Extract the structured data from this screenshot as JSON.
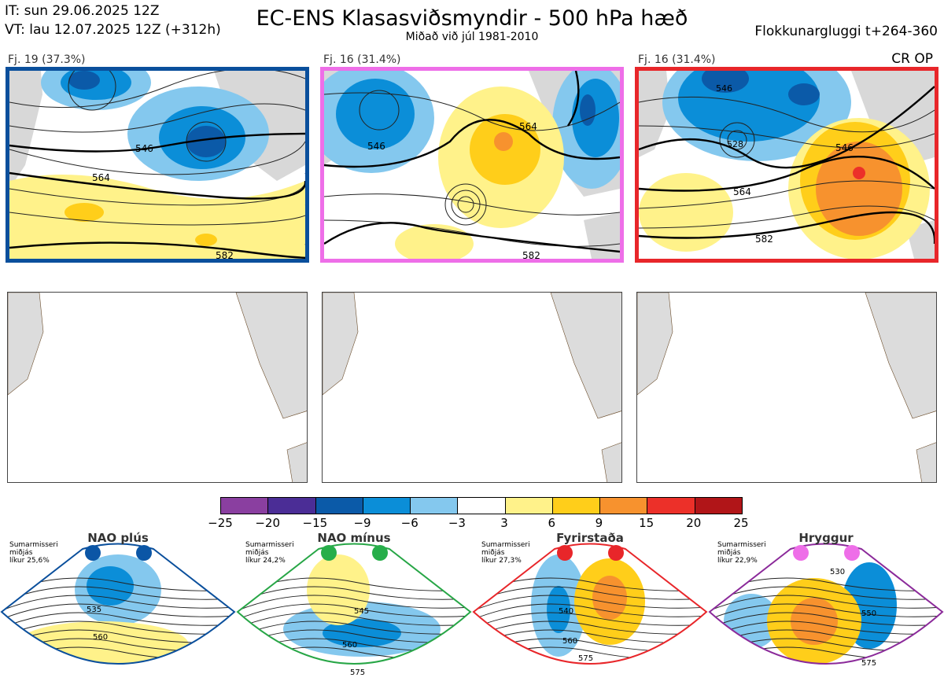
{
  "header": {
    "initial_time": "IT: sun 29.06.2025 12Z",
    "valid_time": "VT: lau 12.07.2025 12Z  (+312h)",
    "title": "EC-ENS Klasasviðsmyndir - 500 hPa hæð",
    "subtitle": "Miðað við júl 1981-2010",
    "window": "Flokkunargluggi t+264-360"
  },
  "clusters": [
    {
      "label": "Fj. 19 (37.3%)",
      "border_color": "#0a4f9c",
      "contours": [
        "546",
        "564",
        "582"
      ]
    },
    {
      "label": "Fj. 16 (31.4%)",
      "border_color": "#ee6ee8",
      "contours": [
        "546",
        "564",
        "582"
      ]
    },
    {
      "label": "Fj. 16 (31.4%)",
      "border_color": "#e8262a",
      "contours": [
        "546",
        "564",
        "582",
        "528",
        "546"
      ],
      "tag": "CR OP"
    }
  ],
  "colorbar": {
    "colors": [
      "#8a3fa0",
      "#4b2d96",
      "#0b5aa8",
      "#0b8ed8",
      "#84c8ee",
      "#ffffff",
      "#fff28a",
      "#ffce1a",
      "#f7922e",
      "#ec3029",
      "#b11518"
    ],
    "labels": [
      "−25",
      "−20",
      "−15",
      "−9",
      "−6",
      "−3",
      "3",
      "6",
      "9",
      "15",
      "20",
      "25"
    ]
  },
  "regimes": [
    {
      "name": "NAO plús",
      "note": [
        "Sumarmisseri",
        "miðjás",
        "líkur 25,6%"
      ],
      "border_color": "#0a4f9c",
      "dot_color": "#0b56a6",
      "contours": [
        "535",
        "560"
      ]
    },
    {
      "name": "NAO mínus",
      "note": [
        "Sumarmisseri",
        "miðjás",
        "líkur 24,2%"
      ],
      "border_color": "#27a646",
      "dot_color": "#27ae4a",
      "contours": [
        "545",
        "560",
        "575"
      ]
    },
    {
      "name": "Fyrirstaða",
      "note": [
        "Sumarmisseri",
        "miðjás",
        "líkur 27,3%"
      ],
      "border_color": "#e8262a",
      "dot_color": "#e8262a",
      "contours": [
        "540",
        "560",
        "575"
      ]
    },
    {
      "name": "Hryggur",
      "note": [
        "Sumarmisseri",
        "miðjás",
        "líkur 22,9%"
      ],
      "border_color": "#8b2a9a",
      "dot_color": "#ee6ee8",
      "contours": [
        "530",
        "550",
        "575"
      ]
    }
  ]
}
